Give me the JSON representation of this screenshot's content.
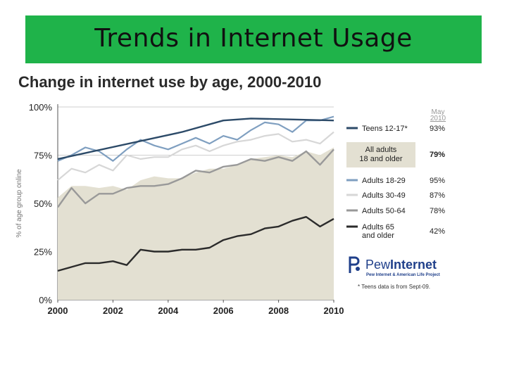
{
  "slide": {
    "title": "Trends in Internet Usage"
  },
  "colors": {
    "title_bg": "#1fb34a",
    "area_fill": "#e3e0d2",
    "teens": "#2c4a68",
    "adults_18_29": "#7f9fc0",
    "adults_30_49": "#d7d7d7",
    "adults_50_64": "#999999",
    "adults_65": "#2b2b2b",
    "brand": "#1f3f8a"
  },
  "chart_data": {
    "type": "line",
    "title": "Change in internet use by age, 2000-2010",
    "ylabel": "% of age group online",
    "xlabel": "",
    "x_ticks": [
      "2000",
      "2002",
      "2004",
      "2006",
      "2008",
      "2010"
    ],
    "xlim": [
      2000,
      2010
    ],
    "y_ticks": [
      "0%",
      "25%",
      "50%",
      "75%",
      "100%"
    ],
    "ylim": [
      0,
      100
    ],
    "legend_header": [
      "May",
      "2010"
    ],
    "series": [
      {
        "key": "teens",
        "name": "Teens 12-17*",
        "final_label": "93%",
        "x": [
          2000,
          2004.5,
          2006,
          2007,
          2010
        ],
        "y": [
          73,
          87,
          93,
          94,
          93
        ]
      },
      {
        "key": "all",
        "name": "All adults 18 and older",
        "name_lines": [
          "All adults",
          "18 and older"
        ],
        "final_label": "79%",
        "x": [
          2000,
          2000.5,
          2001,
          2001.5,
          2002,
          2002.5,
          2003,
          2003.5,
          2004,
          2004.5,
          2005,
          2005.5,
          2006,
          2006.5,
          2007,
          2007.5,
          2008,
          2008.5,
          2009,
          2009.5,
          2010
        ],
        "y": [
          53,
          59,
          59,
          58,
          59,
          57,
          62,
          64,
          63,
          63,
          66,
          68,
          68,
          70,
          73,
          74,
          75,
          74,
          77,
          75,
          79
        ]
      },
      {
        "key": "adults_18_29",
        "name": "Adults 18-29",
        "final_label": "95%",
        "x": [
          2000,
          2000.5,
          2001,
          2001.5,
          2002,
          2002.5,
          2003,
          2003.5,
          2004,
          2004.5,
          2005,
          2005.5,
          2006,
          2006.5,
          2007,
          2007.5,
          2008,
          2008.5,
          2009,
          2009.5,
          2010
        ],
        "y": [
          72,
          75,
          79,
          77,
          72,
          78,
          83,
          80,
          78,
          81,
          84,
          81,
          85,
          83,
          88,
          92,
          91,
          87,
          93,
          93,
          95
        ]
      },
      {
        "key": "adults_30_49",
        "name": "Adults 30-49",
        "final_label": "87%",
        "x": [
          2000,
          2000.5,
          2001,
          2001.5,
          2002,
          2002.5,
          2003,
          2003.5,
          2004,
          2004.5,
          2005,
          2005.5,
          2006,
          2006.5,
          2007,
          2007.5,
          2008,
          2008.5,
          2009,
          2009.5,
          2010
        ],
        "y": [
          62,
          68,
          66,
          70,
          67,
          75,
          73,
          74,
          74,
          78,
          80,
          77,
          80,
          82,
          83,
          85,
          86,
          82,
          83,
          81,
          87
        ]
      },
      {
        "key": "adults_50_64",
        "name": "Adults 50-64",
        "final_label": "78%",
        "x": [
          2000,
          2000.5,
          2001,
          2001.5,
          2002,
          2002.5,
          2003,
          2003.5,
          2004,
          2004.5,
          2005,
          2005.5,
          2006,
          2006.5,
          2007,
          2007.5,
          2008,
          2008.5,
          2009,
          2009.5,
          2010
        ],
        "y": [
          48,
          58,
          50,
          55,
          55,
          58,
          59,
          59,
          60,
          63,
          67,
          66,
          69,
          70,
          73,
          72,
          74,
          72,
          77,
          70,
          78
        ]
      },
      {
        "key": "adults_65",
        "name": "Adults 65 and older",
        "name_lines": [
          "Adults 65",
          "and older"
        ],
        "final_label": "42%",
        "x": [
          2000,
          2000.5,
          2001,
          2001.5,
          2002,
          2002.5,
          2003,
          2003.5,
          2004,
          2004.5,
          2005,
          2005.5,
          2006,
          2006.5,
          2007,
          2007.5,
          2008,
          2008.5,
          2009,
          2009.5,
          2010
        ],
        "y": [
          15,
          17,
          19,
          19,
          20,
          18,
          26,
          25,
          25,
          26,
          26,
          27,
          31,
          33,
          34,
          37,
          38,
          41,
          43,
          38,
          42
        ]
      }
    ],
    "footnote": "* Teens data is from Sept-09."
  },
  "logo": {
    "name_light": "Pew",
    "name_bold": "Internet",
    "subtitle": "Pew Internet & American Life Project"
  }
}
